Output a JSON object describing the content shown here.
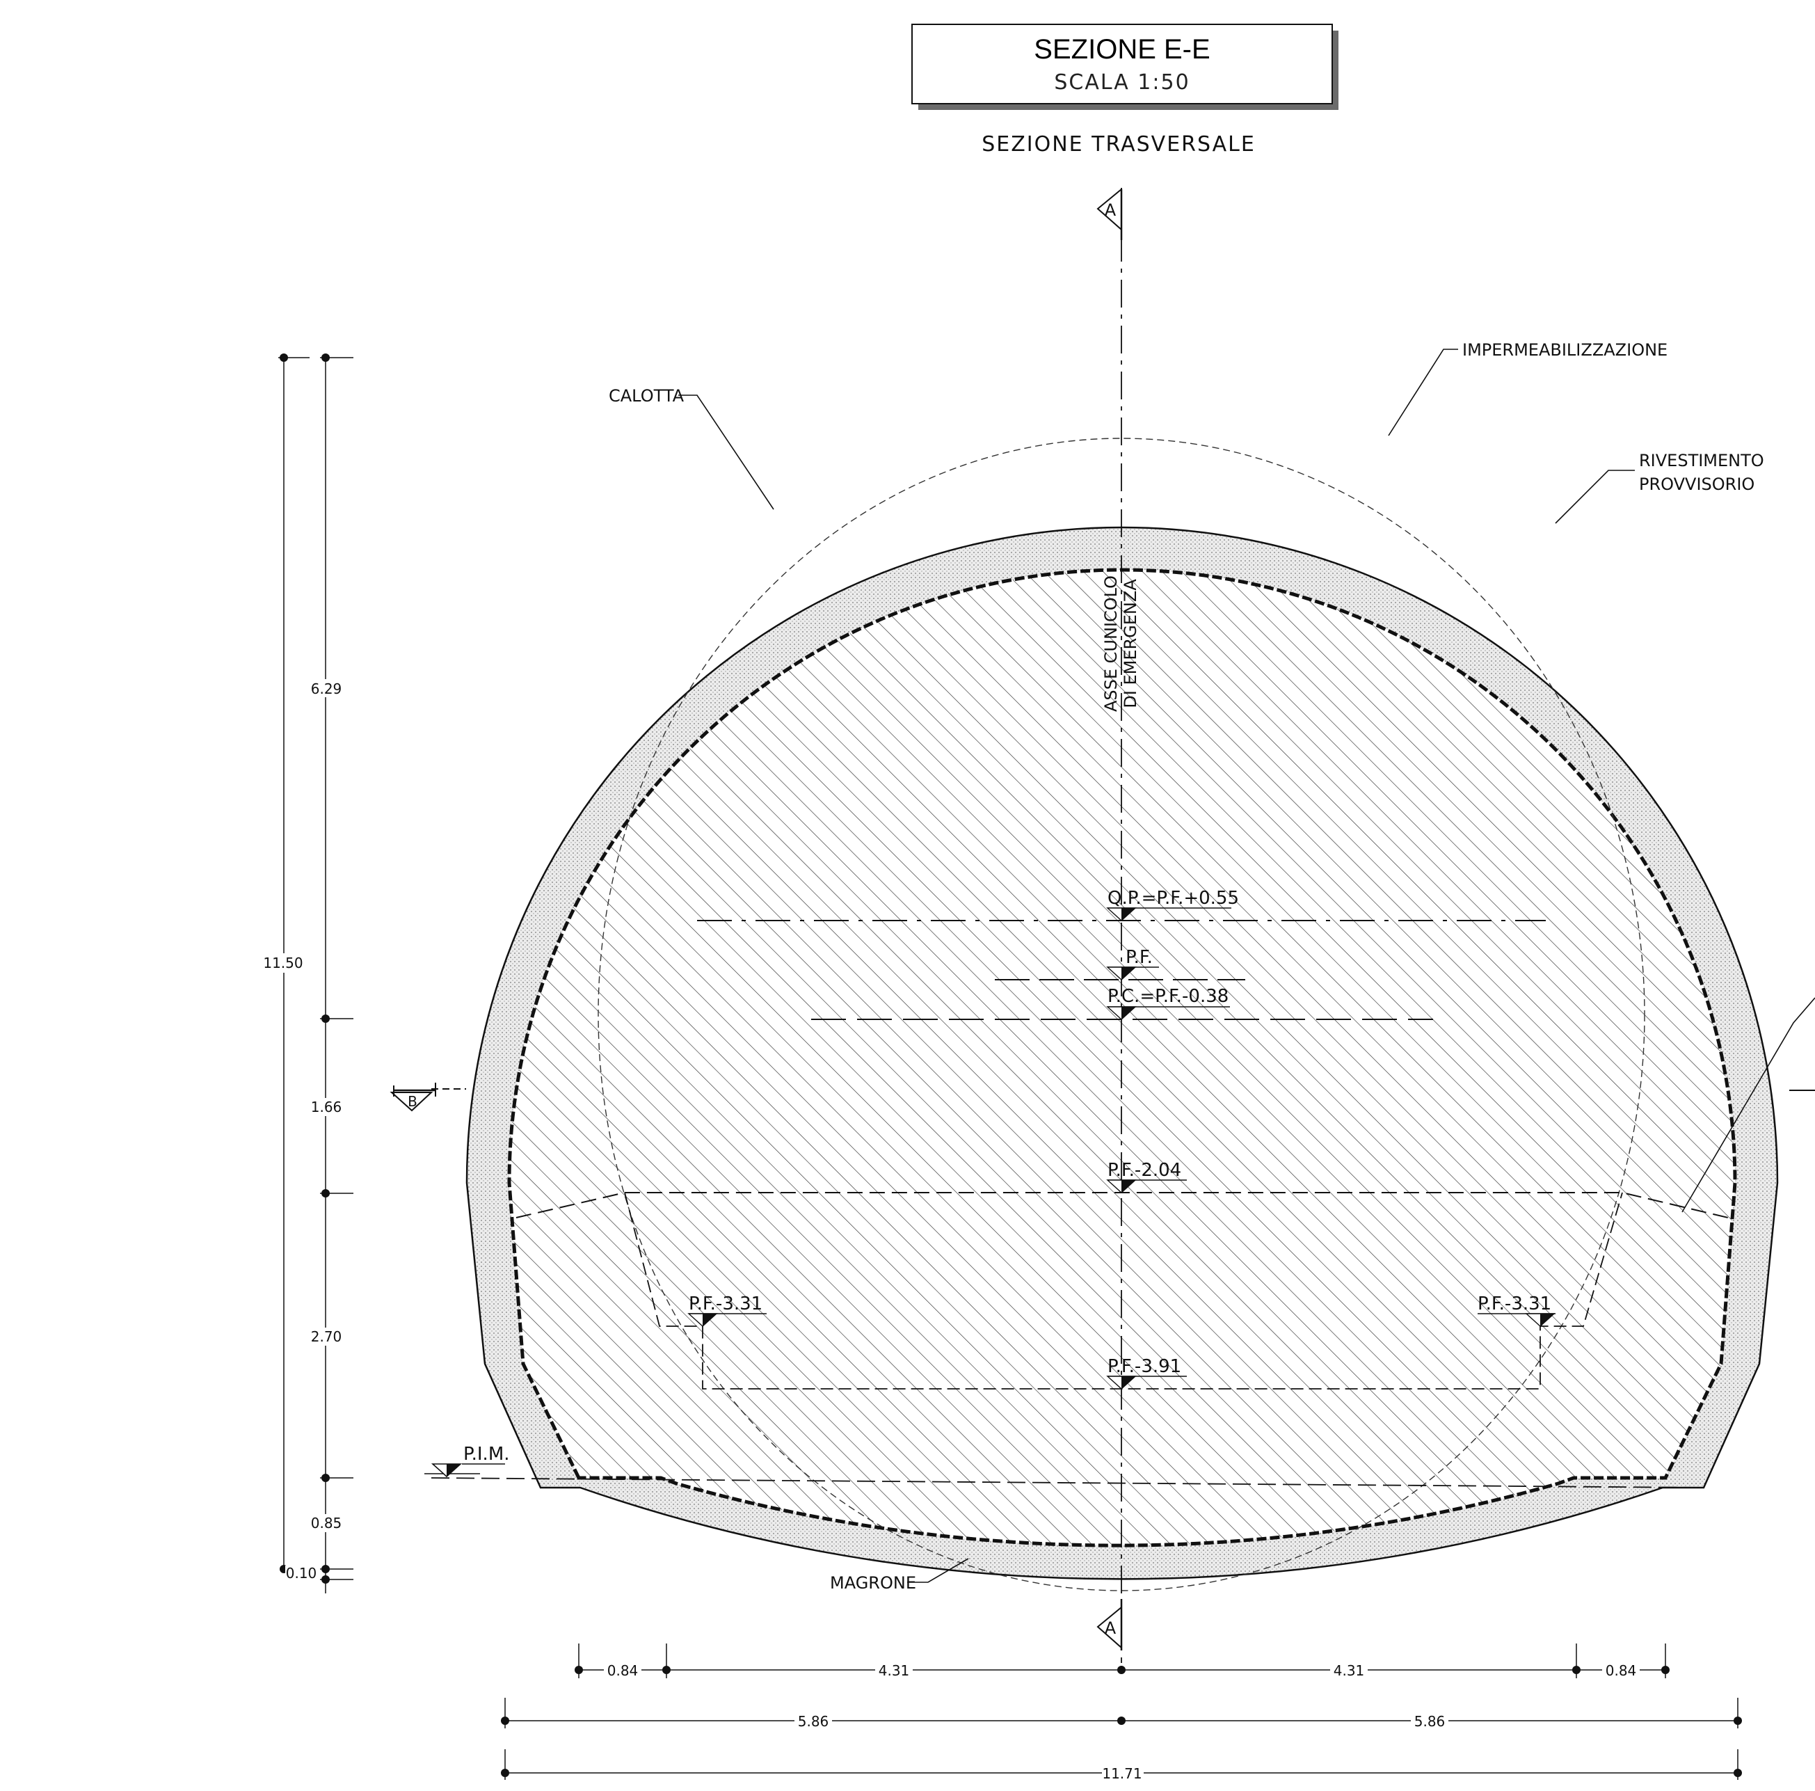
{
  "title_block": {
    "title": "SEZIONE E-E",
    "scale": "SCALA 1:50"
  },
  "heading": "SEZIONE TRASVERSALE",
  "axis_label": {
    "line1": "ASSE CUNICOLO",
    "line2": "DI EMERGENZA"
  },
  "section_markers": {
    "top": "A",
    "bottom": "A",
    "left": "B"
  },
  "callouts": {
    "calotta": "CALOTTA",
    "impermeabilizzazione": "IMPERMEABILIZZAZIONE",
    "rivestimento_line1": "RIVESTIMENTO",
    "rivestimento_line2": "PROVVISORIO",
    "magrone": "MAGRONE",
    "pim": "P.I.M."
  },
  "levels": {
    "qp": "Q.P.=P.F.+0.55",
    "pf": "P.F.",
    "pc": "P.C.=P.F.-0.38",
    "pf_204": "P.F.-2.04",
    "pf_331_left": "P.F.-3.31",
    "pf_331_right": "P.F.-3.31",
    "pf_391": "P.F.-3.91"
  },
  "vertical_dims": {
    "total": "11.50",
    "d1": "6.29",
    "d2": "1.66",
    "d3": "2.70",
    "d4": "0.85",
    "d5": "0.10"
  },
  "horizontal_dims": {
    "row1": [
      "0.84",
      "4.31",
      "4.31",
      "0.84"
    ],
    "row2": [
      "5.86",
      "5.86"
    ],
    "row3": "11.71"
  },
  "colors": {
    "line": "#111111",
    "lining_fill": "#e4e4e4"
  }
}
